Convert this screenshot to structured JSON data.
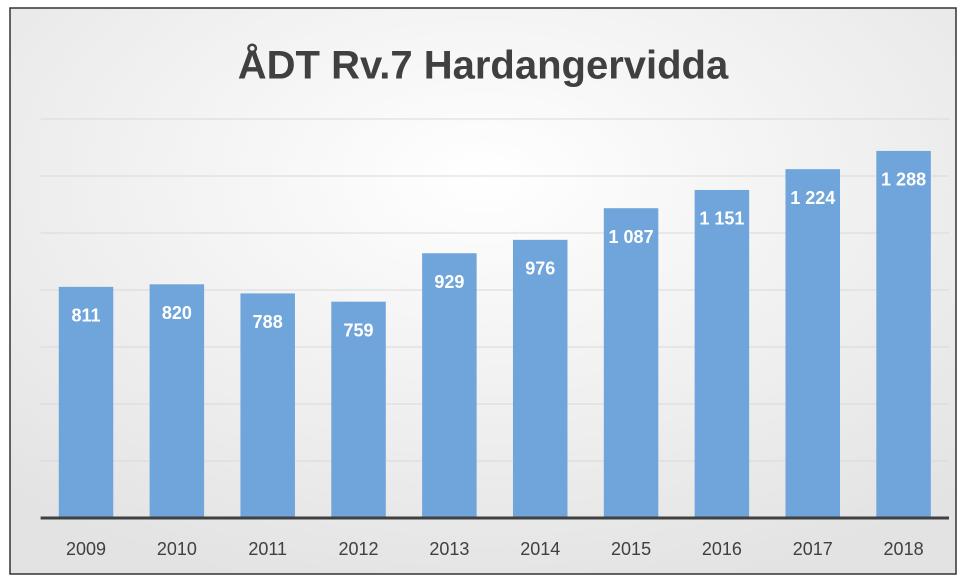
{
  "chart_data": {
    "type": "bar",
    "title": "ÅDT Rv.7 Hardangervidda",
    "categories": [
      "2009",
      "2010",
      "2011",
      "2012",
      "2013",
      "2014",
      "2015",
      "2016",
      "2017",
      "2018"
    ],
    "values": [
      811,
      820,
      788,
      759,
      929,
      976,
      1087,
      1151,
      1224,
      1288
    ],
    "value_labels": [
      "811",
      "820",
      "788",
      "759",
      "929",
      "976",
      "1 087",
      "1 151",
      "1 224",
      "1 288"
    ],
    "color": "#6fa5da",
    "ylim": [
      0,
      1400
    ],
    "yticks": [
      0,
      200,
      400,
      600,
      800,
      1000,
      1200,
      1400
    ],
    "grid": true
  }
}
